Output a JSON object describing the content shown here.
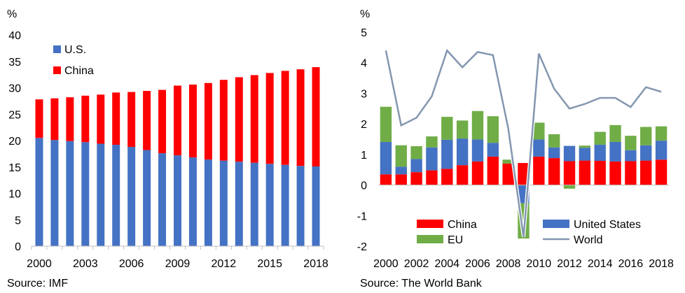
{
  "chart_data": [
    {
      "type": "bar",
      "stacked": true,
      "title": "",
      "unit_label": "%",
      "source": "Source: IMF",
      "x": [
        2000,
        2001,
        2002,
        2003,
        2004,
        2005,
        2006,
        2007,
        2008,
        2009,
        2010,
        2011,
        2012,
        2013,
        2014,
        2015,
        2016,
        2017,
        2018
      ],
      "x_tick_labels": [
        "2000",
        "2003",
        "2006",
        "2009",
        "2012",
        "2015",
        "2018"
      ],
      "y_ticks": [
        "0",
        "5",
        "10",
        "15",
        "20",
        "25",
        "30",
        "35",
        "40"
      ],
      "ylim": [
        0,
        40
      ],
      "legend_position": "top-left",
      "grid": false,
      "series": [
        {
          "name": "U.S.",
          "color": "#4472C4",
          "values": [
            20.5,
            20.1,
            19.9,
            19.7,
            19.4,
            19.2,
            18.8,
            18.2,
            17.6,
            17.2,
            16.8,
            16.4,
            16.2,
            16.0,
            15.8,
            15.6,
            15.4,
            15.2,
            15.1
          ]
        },
        {
          "name": "China",
          "color": "#FF0000",
          "values": [
            7.3,
            7.9,
            8.3,
            8.8,
            9.3,
            9.9,
            10.4,
            11.2,
            12.0,
            13.2,
            13.8,
            14.5,
            15.3,
            16.0,
            16.6,
            17.2,
            17.8,
            18.3,
            18.8
          ]
        }
      ]
    },
    {
      "type": "bar",
      "stacked": true,
      "title": "",
      "unit_label": "%",
      "source": "Source: The World Bank",
      "x": [
        2000,
        2001,
        2002,
        2003,
        2004,
        2005,
        2006,
        2007,
        2008,
        2009,
        2010,
        2011,
        2012,
        2013,
        2014,
        2015,
        2016,
        2017,
        2018
      ],
      "x_tick_labels": [
        "2000",
        "2002",
        "2004",
        "2006",
        "2008",
        "2010",
        "2012",
        "2014",
        "2016",
        "2018"
      ],
      "y_ticks": [
        "-2",
        "-1",
        "0",
        "1",
        "2",
        "3",
        "4",
        "5"
      ],
      "ylim": [
        -2,
        5
      ],
      "legend_position": "bottom",
      "grid": false,
      "series": [
        {
          "name": "China",
          "color": "#FF0000",
          "values": [
            0.35,
            0.35,
            0.42,
            0.48,
            0.53,
            0.65,
            0.77,
            0.93,
            0.7,
            0.72,
            0.93,
            0.88,
            0.78,
            0.8,
            0.79,
            0.77,
            0.78,
            0.8,
            0.83
          ]
        },
        {
          "name": "United States",
          "color": "#4472C4",
          "values": [
            1.06,
            0.25,
            0.43,
            0.75,
            0.95,
            0.87,
            0.72,
            0.45,
            0.0,
            -0.6,
            0.56,
            0.35,
            0.5,
            0.42,
            0.53,
            0.64,
            0.36,
            0.5,
            0.62
          ]
        },
        {
          "name": "EU",
          "color": "#70AD47",
          "values": [
            1.15,
            0.7,
            0.42,
            0.36,
            0.75,
            0.59,
            0.93,
            0.87,
            0.13,
            -1.15,
            0.55,
            0.43,
            -0.12,
            0.07,
            0.42,
            0.55,
            0.47,
            0.6,
            0.47
          ]
        },
        {
          "name": "World",
          "color": "#8497B0",
          "kind": "line",
          "values": [
            4.4,
            1.95,
            2.2,
            2.9,
            4.4,
            3.85,
            4.35,
            4.25,
            1.85,
            -1.7,
            4.3,
            3.15,
            2.5,
            2.65,
            2.85,
            2.85,
            2.55,
            3.2,
            3.05
          ]
        }
      ]
    }
  ]
}
